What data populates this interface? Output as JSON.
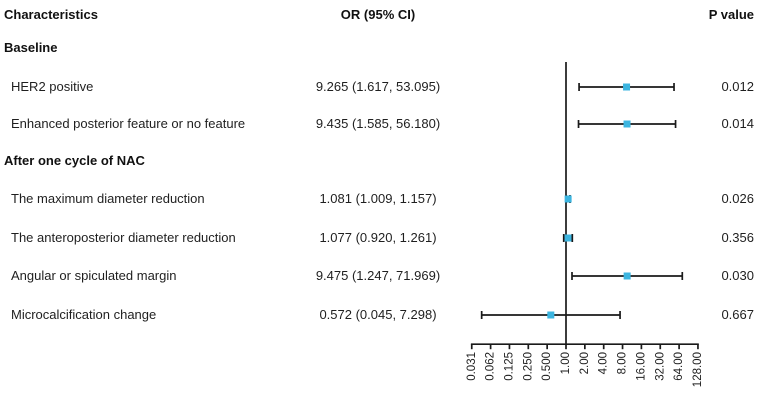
{
  "chart_data": {
    "type": "forest_plot",
    "columns": {
      "characteristics": "Characteristics",
      "or_ci": "OR (95% CI)",
      "p_value": "P value"
    },
    "x_axis": {
      "scale": "log2",
      "tick_labels": [
        "0.031",
        "0.062",
        "0.125",
        "0.250",
        "0.500",
        "1.00",
        "2.00",
        "4.00",
        "8.00",
        "16.00",
        "32.00",
        "64.00",
        "128.00"
      ],
      "tick_values": [
        0.03125,
        0.0625,
        0.125,
        0.25,
        0.5,
        1,
        2,
        4,
        8,
        16,
        32,
        64,
        128
      ],
      "reference_line": 1
    },
    "rows": [
      {
        "label": "Baseline",
        "group": true
      },
      {
        "label": "HER2 positive",
        "or": 9.265,
        "ci_low": 1.617,
        "ci_high": 53.095,
        "or_ci": "9.265 (1.617, 53.095)",
        "p_value": "0.012"
      },
      {
        "label": "Enhanced posterior feature or no feature",
        "or": 9.435,
        "ci_low": 1.585,
        "ci_high": 56.18,
        "or_ci": "9.435 (1.585, 56.180)",
        "p_value": "0.014"
      },
      {
        "label": "After one cycle of NAC",
        "group": true
      },
      {
        "label": "The maximum diameter reduction",
        "or": 1.081,
        "ci_low": 1.009,
        "ci_high": 1.157,
        "or_ci": "1.081 (1.009, 1.157)",
        "p_value": "0.026"
      },
      {
        "label": "The anteroposterior diameter reduction",
        "or": 1.077,
        "ci_low": 0.92,
        "ci_high": 1.261,
        "or_ci": "1.077 (0.920, 1.261)",
        "p_value": "0.356"
      },
      {
        "label": "Angular or spiculated margin",
        "or": 9.475,
        "ci_low": 1.247,
        "ci_high": 71.969,
        "or_ci": "9.475 (1.247, 71.969)",
        "p_value": "0.030"
      },
      {
        "label": "Microcalcification change",
        "or": 0.572,
        "ci_low": 0.045,
        "ci_high": 7.298,
        "or_ci": "0.572 (0.045, 7.298)",
        "p_value": "0.667"
      }
    ],
    "colors": {
      "marker": "#3cb5e0",
      "line": "#1a1a1a",
      "text": "#1f1f1f"
    }
  }
}
